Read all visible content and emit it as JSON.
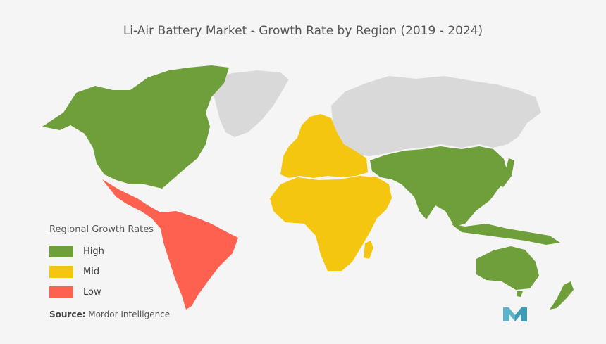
{
  "title": "Li-Air Battery Market - Growth Rate by Region (2019 - 2024)",
  "colors": {
    "background": "#f5f5f5",
    "high": "#6e9f3a",
    "mid": "#f5c60f",
    "low": "#fe6150",
    "none": "#d9d9d9",
    "logo": "#5bb3c9"
  },
  "legend": {
    "title": "Regional Growth Rates",
    "items": [
      {
        "label": "High",
        "color": "#6e9f3a"
      },
      {
        "label": "Mid",
        "color": "#f5c60f"
      },
      {
        "label": "Low",
        "color": "#fe6150"
      }
    ]
  },
  "regions": [
    {
      "name": "North America",
      "level": "High"
    },
    {
      "name": "Asia-Pacific",
      "level": "High"
    },
    {
      "name": "Australia",
      "level": "High"
    },
    {
      "name": "Europe",
      "level": "Mid"
    },
    {
      "name": "Middle East and Africa",
      "level": "Mid"
    },
    {
      "name": "Latin America",
      "level": "Low"
    },
    {
      "name": "Greenland",
      "level": "None"
    },
    {
      "name": "Russia",
      "level": "None"
    }
  ],
  "source": {
    "label": "Source:",
    "text": "Mordor Intelligence"
  },
  "logo_icon": "mordor-intelligence-logo-icon"
}
